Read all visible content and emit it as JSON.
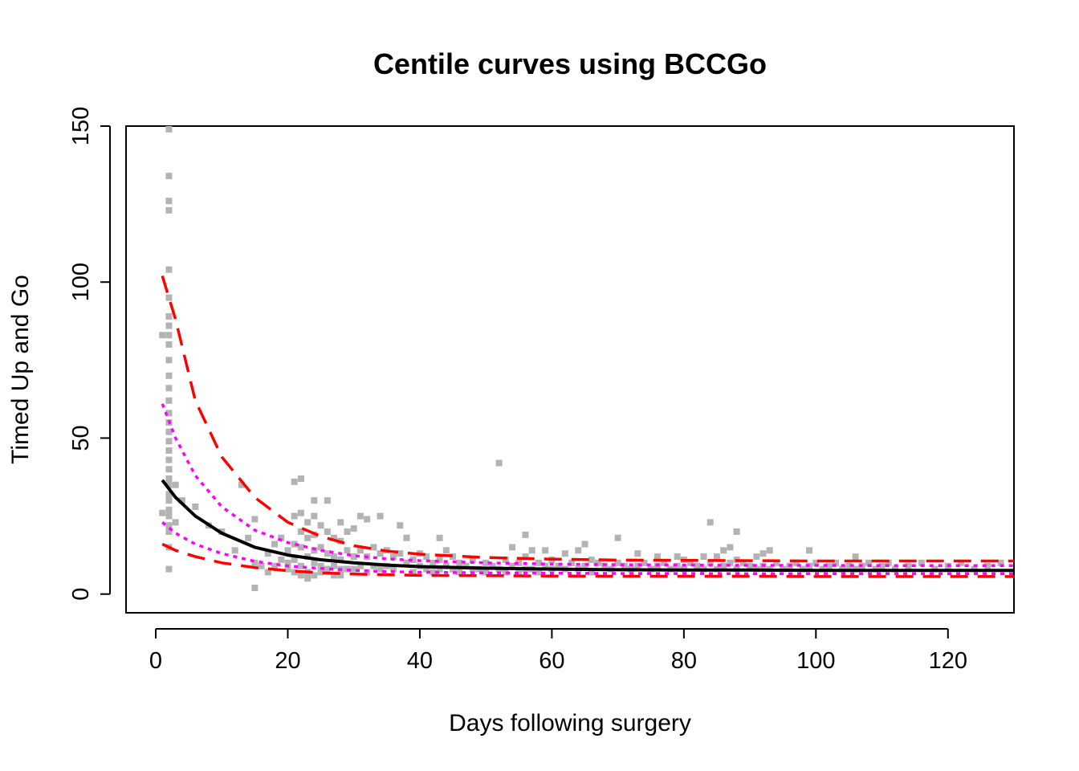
{
  "chart_data": {
    "type": "scatter",
    "title": "Centile curves using BCCGo",
    "xlabel": "Days following surgery",
    "ylabel": "Timed Up and Go",
    "xlim": [
      -4.5,
      130
    ],
    "ylim": [
      -6,
      150
    ],
    "x_ticks": [
      0,
      20,
      40,
      60,
      80,
      100,
      120
    ],
    "y_ticks": [
      0,
      50,
      100,
      150
    ],
    "grid": false,
    "legend": "none",
    "colors": {
      "points": "#b3b3b3",
      "median": "#000000",
      "outer_centiles": "#ff0000",
      "inner_centiles": "#ff00ff"
    },
    "points": [
      [
        2,
        149
      ],
      [
        2,
        134
      ],
      [
        2,
        126
      ],
      [
        2,
        123
      ],
      [
        2,
        104
      ],
      [
        2,
        95
      ],
      [
        2,
        89
      ],
      [
        2,
        86
      ],
      [
        2,
        83
      ],
      [
        2,
        80
      ],
      [
        2,
        75
      ],
      [
        2,
        70
      ],
      [
        2,
        66
      ],
      [
        2,
        62
      ],
      [
        2,
        58
      ],
      [
        2,
        55
      ],
      [
        2,
        52
      ],
      [
        2,
        49
      ],
      [
        2,
        46
      ],
      [
        2,
        43
      ],
      [
        2,
        40
      ],
      [
        2,
        37
      ],
      [
        2,
        35
      ],
      [
        2,
        32
      ],
      [
        2,
        30
      ],
      [
        2,
        27
      ],
      [
        2,
        25
      ],
      [
        2,
        22
      ],
      [
        2,
        20
      ],
      [
        2,
        15
      ],
      [
        2,
        8
      ],
      [
        1,
        83
      ],
      [
        1,
        26
      ],
      [
        3,
        35
      ],
      [
        3,
        23
      ],
      [
        4,
        30
      ],
      [
        6,
        28
      ],
      [
        8,
        22
      ],
      [
        10,
        20
      ],
      [
        12,
        14
      ],
      [
        13,
        35
      ],
      [
        14,
        18
      ],
      [
        15,
        24
      ],
      [
        15,
        10
      ],
      [
        15,
        2
      ],
      [
        16,
        9
      ],
      [
        17,
        13
      ],
      [
        17,
        7
      ],
      [
        18,
        16
      ],
      [
        18,
        9
      ],
      [
        19,
        11
      ],
      [
        19,
        18
      ],
      [
        20,
        14
      ],
      [
        20,
        8
      ],
      [
        20,
        10
      ],
      [
        21,
        36
      ],
      [
        21,
        25
      ],
      [
        21,
        16
      ],
      [
        21,
        11
      ],
      [
        21,
        7
      ],
      [
        22,
        37
      ],
      [
        22,
        26
      ],
      [
        22,
        20
      ],
      [
        22,
        15
      ],
      [
        22,
        9
      ],
      [
        22,
        6
      ],
      [
        23,
        23
      ],
      [
        23,
        18
      ],
      [
        23,
        12
      ],
      [
        23,
        7
      ],
      [
        23,
        5
      ],
      [
        24,
        30
      ],
      [
        24,
        25
      ],
      [
        24,
        19
      ],
      [
        24,
        14
      ],
      [
        24,
        10
      ],
      [
        24,
        6
      ],
      [
        25,
        22
      ],
      [
        25,
        15
      ],
      [
        25,
        9
      ],
      [
        25,
        7
      ],
      [
        26,
        30
      ],
      [
        26,
        20
      ],
      [
        26,
        13
      ],
      [
        26,
        8
      ],
      [
        27,
        18
      ],
      [
        27,
        12
      ],
      [
        27,
        9
      ],
      [
        27,
        6
      ],
      [
        28,
        23
      ],
      [
        28,
        17
      ],
      [
        28,
        11
      ],
      [
        28,
        8
      ],
      [
        28,
        6
      ],
      [
        29,
        20
      ],
      [
        29,
        14
      ],
      [
        29,
        8
      ],
      [
        30,
        21
      ],
      [
        30,
        12
      ],
      [
        30,
        8
      ],
      [
        31,
        25
      ],
      [
        31,
        14
      ],
      [
        31,
        9
      ],
      [
        32,
        24
      ],
      [
        32,
        12
      ],
      [
        32,
        7
      ],
      [
        33,
        15
      ],
      [
        33,
        9
      ],
      [
        34,
        25
      ],
      [
        34,
        13
      ],
      [
        34,
        8
      ],
      [
        35,
        14
      ],
      [
        35,
        9
      ],
      [
        36,
        12
      ],
      [
        36,
        8
      ],
      [
        37,
        22
      ],
      [
        37,
        13
      ],
      [
        38,
        18
      ],
      [
        38,
        10
      ],
      [
        39,
        11
      ],
      [
        39,
        7
      ],
      [
        40,
        13
      ],
      [
        40,
        9
      ],
      [
        41,
        12
      ],
      [
        41,
        8
      ],
      [
        42,
        10
      ],
      [
        42,
        7
      ],
      [
        43,
        18
      ],
      [
        43,
        11
      ],
      [
        43,
        8
      ],
      [
        44,
        14
      ],
      [
        44,
        9
      ],
      [
        45,
        12
      ],
      [
        45,
        8
      ],
      [
        46,
        10
      ],
      [
        46,
        7
      ],
      [
        47,
        9
      ],
      [
        48,
        11
      ],
      [
        48,
        8
      ],
      [
        49,
        8
      ],
      [
        50,
        10
      ],
      [
        50,
        7
      ],
      [
        51,
        9
      ],
      [
        52,
        42
      ],
      [
        52,
        8
      ],
      [
        53,
        11
      ],
      [
        53,
        7
      ],
      [
        54,
        15
      ],
      [
        54,
        9
      ],
      [
        55,
        10
      ],
      [
        55,
        7
      ],
      [
        56,
        19
      ],
      [
        56,
        12
      ],
      [
        56,
        8
      ],
      [
        57,
        14
      ],
      [
        57,
        8
      ],
      [
        58,
        10
      ],
      [
        58,
        7
      ],
      [
        59,
        14
      ],
      [
        59,
        9
      ],
      [
        60,
        11
      ],
      [
        60,
        8
      ],
      [
        61,
        9
      ],
      [
        62,
        13
      ],
      [
        62,
        8
      ],
      [
        63,
        10
      ],
      [
        64,
        14
      ],
      [
        64,
        8
      ],
      [
        65,
        16
      ],
      [
        65,
        9
      ],
      [
        66,
        11
      ],
      [
        66,
        7
      ],
      [
        67,
        10
      ],
      [
        68,
        9
      ],
      [
        69,
        8
      ],
      [
        70,
        18
      ],
      [
        70,
        10
      ],
      [
        71,
        9
      ],
      [
        72,
        8
      ],
      [
        73,
        13
      ],
      [
        73,
        9
      ],
      [
        74,
        10
      ],
      [
        75,
        8
      ],
      [
        76,
        12
      ],
      [
        76,
        9
      ],
      [
        77,
        10
      ],
      [
        78,
        8
      ],
      [
        79,
        12
      ],
      [
        79,
        9
      ],
      [
        80,
        11
      ],
      [
        80,
        8
      ],
      [
        81,
        10
      ],
      [
        82,
        9
      ],
      [
        83,
        12
      ],
      [
        83,
        8
      ],
      [
        84,
        23
      ],
      [
        84,
        10
      ],
      [
        85,
        12
      ],
      [
        85,
        8
      ],
      [
        86,
        14
      ],
      [
        86,
        9
      ],
      [
        87,
        15
      ],
      [
        87,
        10
      ],
      [
        88,
        20
      ],
      [
        88,
        11
      ],
      [
        88,
        8
      ],
      [
        89,
        10
      ],
      [
        90,
        9
      ],
      [
        91,
        12
      ],
      [
        91,
        8
      ],
      [
        92,
        13
      ],
      [
        92,
        9
      ],
      [
        93,
        14
      ],
      [
        93,
        8
      ],
      [
        94,
        10
      ],
      [
        95,
        8
      ],
      [
        96,
        9
      ],
      [
        97,
        10
      ],
      [
        98,
        8
      ],
      [
        99,
        14
      ],
      [
        99,
        9
      ],
      [
        100,
        10
      ],
      [
        101,
        8
      ],
      [
        102,
        9
      ],
      [
        103,
        10
      ],
      [
        104,
        8
      ],
      [
        105,
        9
      ],
      [
        106,
        12
      ],
      [
        106,
        8
      ],
      [
        107,
        9
      ],
      [
        108,
        10
      ],
      [
        109,
        8
      ],
      [
        110,
        9
      ],
      [
        111,
        10
      ],
      [
        112,
        8
      ],
      [
        114,
        9
      ],
      [
        116,
        10
      ],
      [
        118,
        8
      ],
      [
        120,
        9
      ],
      [
        122,
        10
      ],
      [
        124,
        8
      ],
      [
        126,
        9
      ],
      [
        128,
        10
      ]
    ],
    "series": [
      {
        "x": [
          1,
          3,
          6,
          10,
          15,
          20,
          25,
          30,
          35,
          40,
          50,
          60,
          70,
          80,
          90,
          100,
          110,
          120,
          130
        ],
        "values": [
          102,
          88,
          62,
          44,
          31,
          23,
          18.5,
          15.5,
          13.8,
          12.8,
          11.7,
          11.2,
          10.9,
          10.8,
          10.7,
          10.6,
          10.6,
          10.6,
          10.6
        ]
      },
      {
        "x": [
          1,
          3,
          6,
          10,
          15,
          20,
          25,
          30,
          35,
          40,
          50,
          60,
          70,
          80,
          90,
          100,
          110,
          120,
          130
        ],
        "values": [
          61,
          50,
          38,
          28,
          20.5,
          16.5,
          14,
          12.3,
          11.3,
          10.7,
          10,
          9.6,
          9.4,
          9.3,
          9.2,
          9.2,
          9.1,
          9.1,
          9.1
        ]
      },
      {
        "x": [
          1,
          3,
          6,
          10,
          15,
          20,
          25,
          30,
          35,
          40,
          50,
          60,
          70,
          80,
          90,
          100,
          110,
          120,
          130
        ],
        "values": [
          36.5,
          31,
          25,
          19.5,
          15,
          12.5,
          11,
          10,
          9.3,
          8.8,
          8.3,
          8,
          7.8,
          7.7,
          7.7,
          7.6,
          7.6,
          7.6,
          7.6
        ]
      },
      {
        "x": [
          1,
          3,
          6,
          10,
          15,
          20,
          25,
          30,
          35,
          40,
          50,
          60,
          70,
          80,
          90,
          100,
          110,
          120,
          130
        ],
        "values": [
          23,
          19.5,
          16,
          13,
          10.5,
          9,
          8.2,
          7.6,
          7.2,
          7,
          6.8,
          6.7,
          6.6,
          6.6,
          6.5,
          6.5,
          6.5,
          6.5,
          6.5
        ]
      },
      {
        "x": [
          1,
          3,
          6,
          10,
          15,
          20,
          25,
          30,
          35,
          40,
          50,
          60,
          70,
          80,
          90,
          100,
          110,
          120,
          130
        ],
        "values": [
          16,
          14,
          12,
          10,
          8.5,
          7.5,
          6.8,
          6.4,
          6.2,
          6,
          5.9,
          5.8,
          5.7,
          5.7,
          5.7,
          5.6,
          5.6,
          5.6,
          5.6
        ]
      }
    ]
  }
}
